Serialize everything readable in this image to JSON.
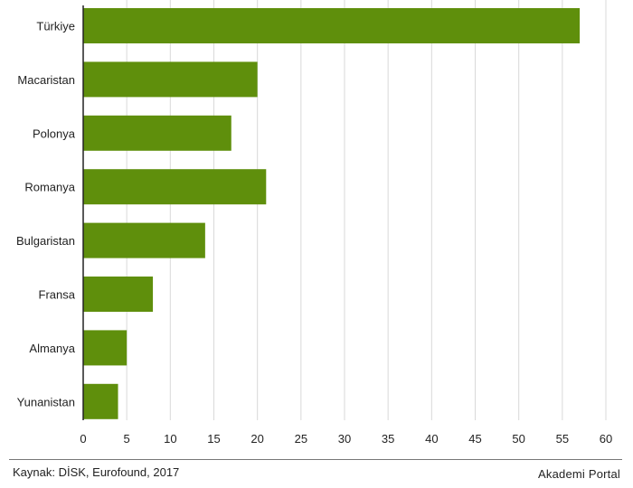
{
  "chart_data": {
    "type": "bar",
    "orientation": "horizontal",
    "categories": [
      "Türkiye",
      "Macaristan",
      "Polonya",
      "Romanya",
      "Bulgaristan",
      "Fransa",
      "Almanya",
      "Yunanistan"
    ],
    "values": [
      57,
      20,
      17,
      21,
      14,
      8,
      5,
      4
    ],
    "xlim": [
      0,
      60
    ],
    "xticks": [
      0,
      5,
      10,
      15,
      20,
      25,
      30,
      35,
      40,
      45,
      50,
      55,
      60
    ],
    "grid": true,
    "bar_color": "#5f8f0c",
    "title": "",
    "xlabel": "",
    "ylabel": ""
  },
  "footer": {
    "source": "Kaynak: DİSK, Eurofound, 2017",
    "brand": "Akademi Portal"
  }
}
